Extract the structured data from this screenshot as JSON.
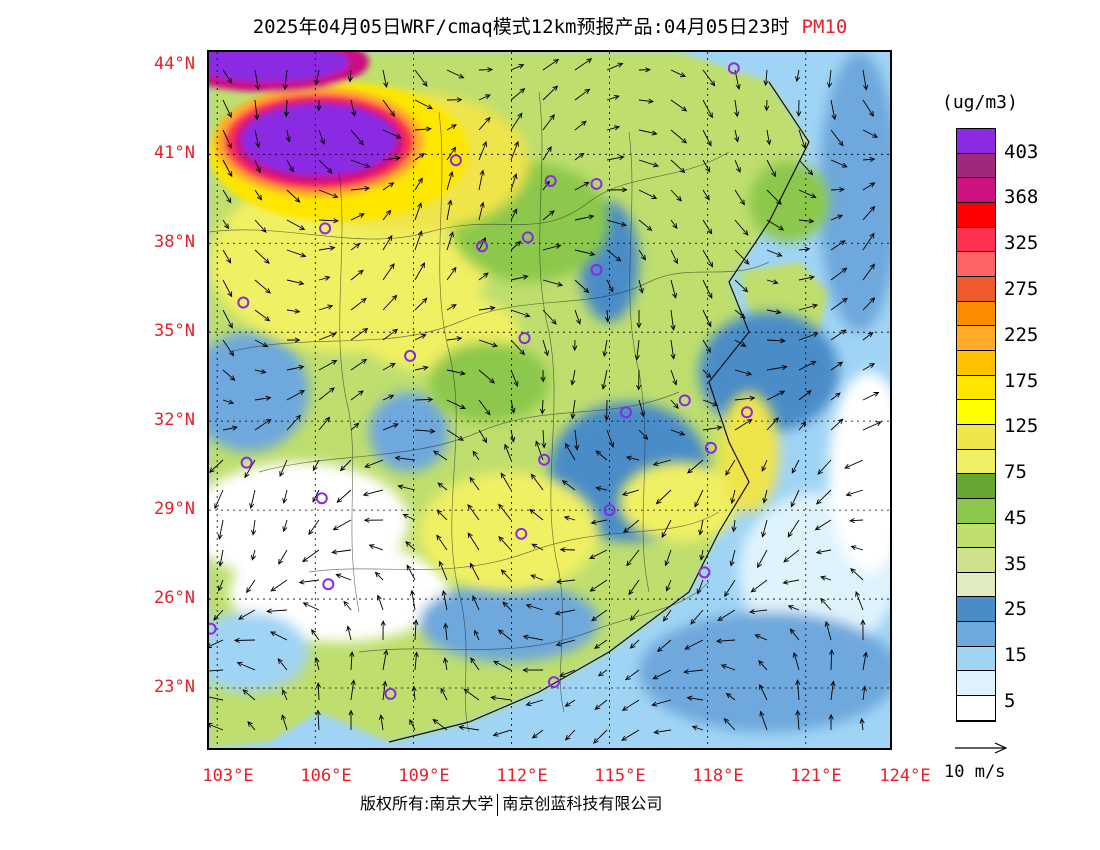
{
  "title": {
    "text": "2025年04月05日WRF/cmaq模式12km预报产品:04月05日23时",
    "variable": "PM10"
  },
  "lat_labels": [
    "44°N",
    "41°N",
    "38°N",
    "35°N",
    "32°N",
    "29°N",
    "26°N",
    "23°N"
  ],
  "lon_labels": [
    "103°E",
    "106°E",
    "109°E",
    "112°E",
    "115°E",
    "118°E",
    "121°E",
    "124°E"
  ],
  "colorbar": {
    "unit": "(ug/m3)",
    "labels": [
      "403",
      "368",
      "325",
      "275",
      "225",
      "175",
      "125",
      "75",
      "45",
      "35",
      "25",
      "15",
      "5"
    ],
    "colors": [
      "#8a2be2",
      "#a0277a",
      "#cc1180",
      "#ff0000",
      "#ff3050",
      "#ff6464",
      "#ee5a2a",
      "#ff8c00",
      "#ffaa28",
      "#ffc000",
      "#ffe600",
      "#ffff00",
      "#f0e44c",
      "#f0f064",
      "#66a632",
      "#8cc84b",
      "#bede6e",
      "#cde28a",
      "#e0ecc0",
      "#4a8cc8",
      "#6ea8dc",
      "#a0d4f5",
      "#dff3fc",
      "#ffffff"
    ]
  },
  "wind_legend": "10 m/s",
  "footer": {
    "copyright": "版权所有:南京大学",
    "company": "南京创蓝科技有限公司"
  },
  "cities": [
    {
      "name": "city-marker",
      "lon": 118.8,
      "lat": 43.9
    },
    {
      "name": "city-marker",
      "lon": 110.3,
      "lat": 40.8
    },
    {
      "name": "city-marker",
      "lon": 114.6,
      "lat": 40.0
    },
    {
      "name": "city-marker",
      "lon": 113.2,
      "lat": 40.1
    },
    {
      "name": "city-marker",
      "lon": 106.3,
      "lat": 38.5
    },
    {
      "name": "city-marker",
      "lon": 111.1,
      "lat": 37.9
    },
    {
      "name": "city-marker",
      "lon": 112.5,
      "lat": 38.2
    },
    {
      "name": "city-marker",
      "lon": 114.6,
      "lat": 37.1
    },
    {
      "name": "city-marker",
      "lon": 103.8,
      "lat": 36.0
    },
    {
      "name": "city-marker",
      "lon": 112.4,
      "lat": 34.8
    },
    {
      "name": "city-marker",
      "lon": 108.9,
      "lat": 34.2
    },
    {
      "name": "city-marker",
      "lon": 115.5,
      "lat": 32.3
    },
    {
      "name": "city-marker",
      "lon": 117.3,
      "lat": 32.7
    },
    {
      "name": "city-marker",
      "lon": 119.2,
      "lat": 32.3
    },
    {
      "name": "city-marker",
      "lon": 118.1,
      "lat": 31.1
    },
    {
      "name": "city-marker",
      "lon": 103.9,
      "lat": 30.6
    },
    {
      "name": "city-marker",
      "lon": 113.0,
      "lat": 30.7
    },
    {
      "name": "city-marker",
      "lon": 106.2,
      "lat": 29.4
    },
    {
      "name": "city-marker",
      "lon": 115.0,
      "lat": 29.0
    },
    {
      "name": "city-marker",
      "lon": 112.3,
      "lat": 28.2
    },
    {
      "name": "city-marker",
      "lon": 106.4,
      "lat": 26.5
    },
    {
      "name": "city-marker",
      "lon": 117.9,
      "lat": 26.9
    },
    {
      "name": "city-marker",
      "lon": 102.8,
      "lat": 25.0
    },
    {
      "name": "city-marker",
      "lon": 108.3,
      "lat": 22.8
    },
    {
      "name": "city-marker",
      "lon": 113.3,
      "lat": 23.2
    }
  ]
}
